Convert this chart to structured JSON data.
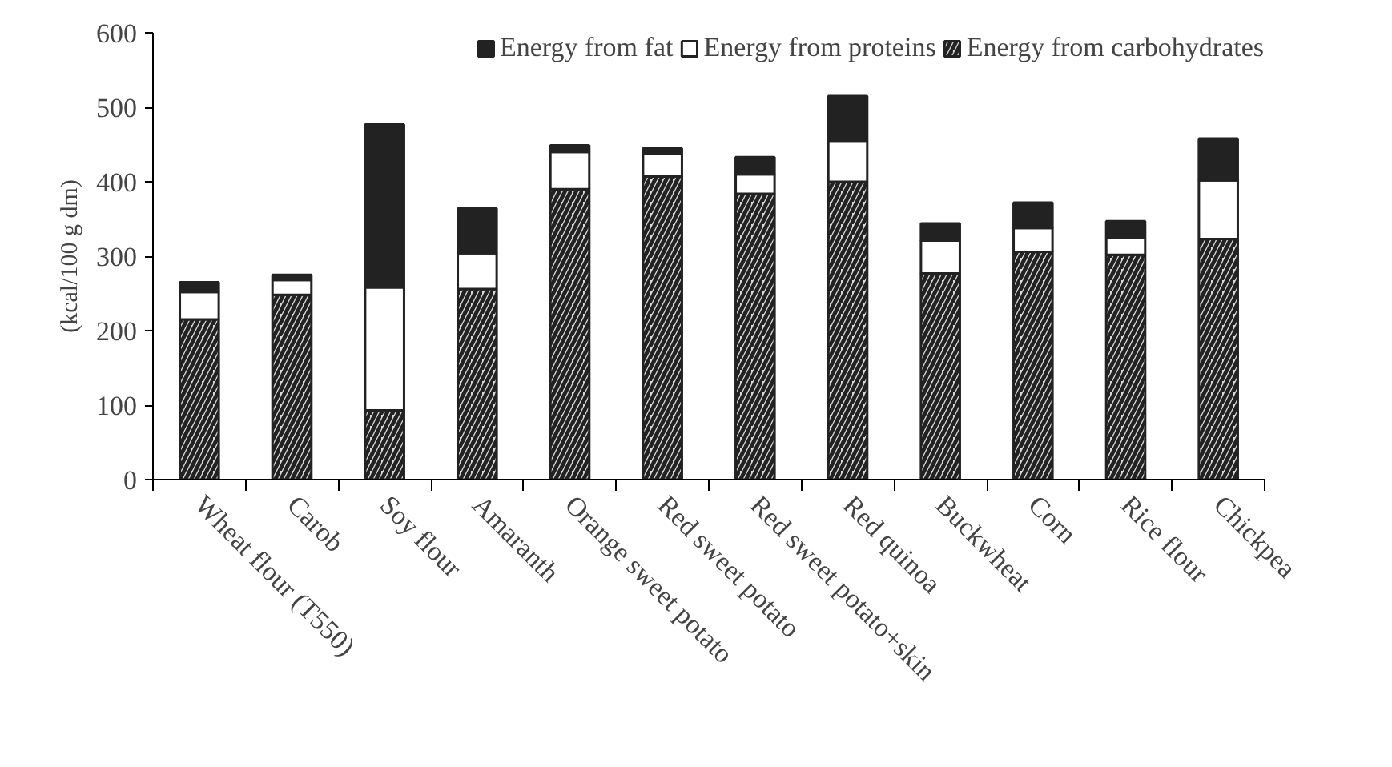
{
  "chart_data": {
    "type": "bar",
    "stacked": true,
    "ylabel": "(kcal/100 g dm)",
    "categories": [
      "Wheat flour (T550)",
      "Carob",
      "Soy flour",
      "Amaranth",
      "Orange sweet potato",
      "Red sweet potato",
      "Red sweet potato+skin",
      "Red quinoa",
      "Buckwheat",
      "Corn",
      "Rice flour",
      "Chickpea"
    ],
    "series": [
      {
        "name": "Energy from carbohydrates",
        "color": "#d9d9d9",
        "values": [
          215,
          248,
          93,
          256,
          390,
          407,
          384,
          400,
          277,
          306,
          302,
          323
        ]
      },
      {
        "name": "Energy from proteins",
        "color": "#ffffff",
        "values": [
          37,
          20,
          165,
          48,
          50,
          30,
          26,
          55,
          44,
          32,
          23,
          79
        ]
      },
      {
        "name": "Energy from fat",
        "color": "#222222",
        "values": [
          13,
          7,
          219,
          60,
          9,
          8,
          23,
          60,
          23,
          34,
          22,
          56
        ]
      }
    ],
    "ylim": [
      0,
      600
    ],
    "yticks": [
      0,
      100,
      200,
      300,
      400,
      500,
      600
    ],
    "grid": false,
    "legend": "top"
  }
}
